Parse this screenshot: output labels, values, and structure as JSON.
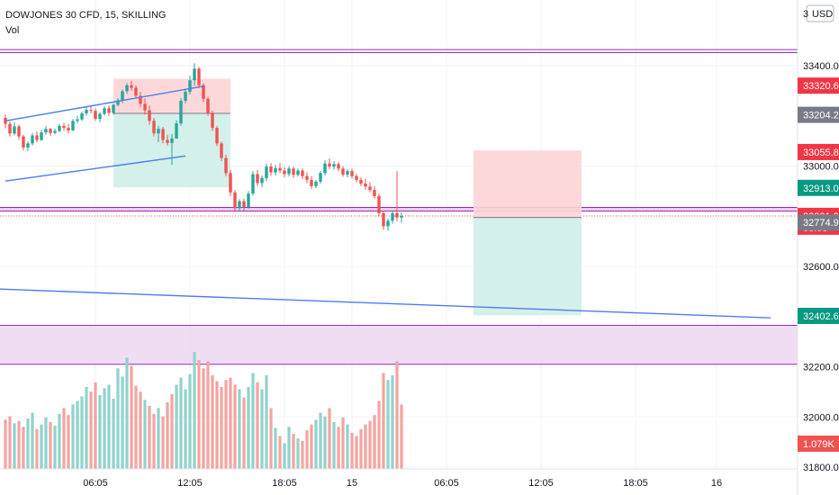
{
  "header": {
    "title": "DOWJONES 30 CFD, 15, SKILLING",
    "volume_label": "Vol"
  },
  "currency_button": "USD",
  "chart_data": {
    "type": "candlestick",
    "symbol": "DOWJONES 30 CFD",
    "interval": "15",
    "broker": "SKILLING",
    "y_unit": "price",
    "ylim": [
      31795,
      33535
    ],
    "price_ticks": [
      "33400.0",
      "33000.0",
      "32600.0",
      "32200.0",
      "32000.0",
      "31800.0"
    ],
    "partial_top_tick": "3",
    "time_ticks": [
      "06:05",
      "12:05",
      "18:05",
      "15",
      "06:05",
      "12:05",
      "18:05",
      "16"
    ],
    "grid": true,
    "ohlc": [
      [
        33192,
        33205,
        33150,
        33168
      ],
      [
        33168,
        33178,
        33118,
        33130
      ],
      [
        33130,
        33176,
        33122,
        33158
      ],
      [
        33158,
        33165,
        33105,
        33118
      ],
      [
        33118,
        33124,
        33062,
        33074
      ],
      [
        33074,
        33098,
        33060,
        33090
      ],
      [
        33090,
        33132,
        33082,
        33122
      ],
      [
        33122,
        33138,
        33095,
        33104
      ],
      [
        33104,
        33145,
        33100,
        33134
      ],
      [
        33134,
        33160,
        33125,
        33148
      ],
      [
        33148,
        33152,
        33120,
        33132
      ],
      [
        33132,
        33150,
        33126,
        33140
      ],
      [
        33140,
        33168,
        33135,
        33160
      ],
      [
        33160,
        33172,
        33140,
        33152
      ],
      [
        33152,
        33168,
        33130,
        33142
      ],
      [
        33142,
        33188,
        33140,
        33180
      ],
      [
        33180,
        33200,
        33170,
        33186
      ],
      [
        33186,
        33218,
        33180,
        33210
      ],
      [
        33210,
        33235,
        33200,
        33224
      ],
      [
        33224,
        33240,
        33210,
        33220
      ],
      [
        33220,
        33230,
        33180,
        33188
      ],
      [
        33188,
        33215,
        33175,
        33208
      ],
      [
        33208,
        33238,
        33200,
        33230
      ],
      [
        33230,
        33242,
        33200,
        33212
      ],
      [
        33212,
        33250,
        33205,
        33244
      ],
      [
        33244,
        33270,
        33238,
        33262
      ],
      [
        33262,
        33305,
        33250,
        33298
      ],
      [
        33298,
        33330,
        33288,
        33322
      ],
      [
        33322,
        33340,
        33300,
        33312
      ],
      [
        33312,
        33322,
        33268,
        33280
      ],
      [
        33280,
        33296,
        33236,
        33248
      ],
      [
        33248,
        33270,
        33205,
        33222
      ],
      [
        33222,
        33240,
        33165,
        33180
      ],
      [
        33180,
        33192,
        33118,
        33130
      ],
      [
        33130,
        33160,
        33096,
        33148
      ],
      [
        33148,
        33156,
        33090,
        33104
      ],
      [
        33104,
        33125,
        33082,
        33092
      ],
      [
        33092,
        33128,
        33005,
        33110
      ],
      [
        33110,
        33182,
        33108,
        33170
      ],
      [
        33170,
        33270,
        33160,
        33260
      ],
      [
        33260,
        33308,
        33250,
        33296
      ],
      [
        33296,
        33360,
        33285,
        33342
      ],
      [
        33342,
        33410,
        33320,
        33388
      ],
      [
        33388,
        33395,
        33310,
        33322
      ],
      [
        33322,
        33330,
        33256,
        33268
      ],
      [
        33268,
        33276,
        33200,
        33212
      ],
      [
        33212,
        33220,
        33140,
        33152
      ],
      [
        33152,
        33160,
        33080,
        33090
      ],
      [
        33090,
        33098,
        33020,
        33032
      ],
      [
        33032,
        33045,
        32960,
        32972
      ],
      [
        32972,
        32985,
        32880,
        32895
      ],
      [
        32895,
        32905,
        32820,
        32832
      ],
      [
        32832,
        32868,
        32820,
        32860
      ],
      [
        32860,
        32870,
        32822,
        32836
      ],
      [
        32836,
        32900,
        32830,
        32890
      ],
      [
        32890,
        32980,
        32882,
        32968
      ],
      [
        32968,
        32985,
        32920,
        32932
      ],
      [
        32932,
        32962,
        32915,
        32952
      ],
      [
        32952,
        33010,
        32940,
        32998
      ],
      [
        32998,
        33012,
        32962,
        32975
      ],
      [
        32975,
        33005,
        32962,
        32992
      ],
      [
        32992,
        33012,
        32972,
        32982
      ],
      [
        32982,
        32996,
        32955,
        32968
      ],
      [
        32968,
        33000,
        32958,
        32990
      ],
      [
        32990,
        32998,
        32952,
        32965
      ],
      [
        32965,
        32990,
        32958,
        32982
      ],
      [
        32982,
        32990,
        32948,
        32960
      ],
      [
        32960,
        32975,
        32932,
        32945
      ],
      [
        32945,
        32960,
        32908,
        32920
      ],
      [
        32920,
        32945,
        32912,
        32938
      ],
      [
        32938,
        32980,
        32930,
        32972
      ],
      [
        32972,
        33022,
        32962,
        33010
      ],
      [
        33010,
        33030,
        32988,
        32998
      ],
      [
        32998,
        33020,
        32985,
        33008
      ],
      [
        33008,
        33016,
        32980,
        32990
      ],
      [
        32990,
        33000,
        32958,
        32966
      ],
      [
        32966,
        32988,
        32955,
        32980
      ],
      [
        32980,
        32990,
        32950,
        32960
      ],
      [
        32960,
        32968,
        32935,
        32945
      ],
      [
        32945,
        32955,
        32920,
        32930
      ],
      [
        32930,
        32950,
        32905,
        32918
      ],
      [
        32918,
        32935,
        32895,
        32905
      ],
      [
        32905,
        32920,
        32870,
        32880
      ],
      [
        32880,
        32890,
        32800,
        32812
      ],
      [
        32812,
        32822,
        32745,
        32760
      ],
      [
        32760,
        32790,
        32742,
        32782
      ],
      [
        32782,
        32820,
        32770,
        32812
      ],
      [
        32812,
        32980,
        32780,
        32795
      ],
      [
        32795,
        32815,
        32775,
        32801
      ]
    ],
    "volume_axis_label": "1.079K",
    "volume": [
      [
        0.42,
        0
      ],
      [
        0.45,
        0
      ],
      [
        0.39,
        1
      ],
      [
        0.41,
        0
      ],
      [
        0.36,
        0
      ],
      [
        0.43,
        1
      ],
      [
        0.48,
        1
      ],
      [
        0.34,
        0
      ],
      [
        0.38,
        1
      ],
      [
        0.44,
        1
      ],
      [
        0.4,
        0
      ],
      [
        0.37,
        1
      ],
      [
        0.47,
        1
      ],
      [
        0.52,
        0
      ],
      [
        0.46,
        0
      ],
      [
        0.55,
        1
      ],
      [
        0.58,
        1
      ],
      [
        0.62,
        1
      ],
      [
        0.7,
        1
      ],
      [
        0.66,
        0
      ],
      [
        0.74,
        0
      ],
      [
        0.63,
        1
      ],
      [
        0.69,
        1
      ],
      [
        0.72,
        1
      ],
      [
        0.6,
        1
      ],
      [
        0.86,
        1
      ],
      [
        0.79,
        1
      ],
      [
        0.95,
        1
      ],
      [
        0.88,
        0
      ],
      [
        0.71,
        0
      ],
      [
        0.66,
        0
      ],
      [
        0.59,
        1
      ],
      [
        0.54,
        0
      ],
      [
        0.47,
        0
      ],
      [
        0.52,
        1
      ],
      [
        0.45,
        0
      ],
      [
        0.57,
        0
      ],
      [
        0.64,
        0
      ],
      [
        0.72,
        1
      ],
      [
        0.78,
        1
      ],
      [
        0.68,
        1
      ],
      [
        0.81,
        1
      ],
      [
        1.0,
        1
      ],
      [
        0.93,
        0
      ],
      [
        0.86,
        0
      ],
      [
        0.92,
        0
      ],
      [
        0.8,
        0
      ],
      [
        0.75,
        0
      ],
      [
        0.7,
        0
      ],
      [
        0.76,
        0
      ],
      [
        0.78,
        0
      ],
      [
        0.72,
        0
      ],
      [
        0.68,
        1
      ],
      [
        0.61,
        0
      ],
      [
        0.7,
        1
      ],
      [
        0.82,
        1
      ],
      [
        0.74,
        0
      ],
      [
        0.68,
        1
      ],
      [
        0.8,
        1
      ],
      [
        0.52,
        0
      ],
      [
        0.35,
        1
      ],
      [
        0.28,
        0
      ],
      [
        0.22,
        1
      ],
      [
        0.36,
        1
      ],
      [
        0.3,
        0
      ],
      [
        0.26,
        1
      ],
      [
        0.24,
        0
      ],
      [
        0.33,
        0
      ],
      [
        0.38,
        0
      ],
      [
        0.42,
        1
      ],
      [
        0.48,
        1
      ],
      [
        0.45,
        1
      ],
      [
        0.52,
        0
      ],
      [
        0.4,
        1
      ],
      [
        0.36,
        0
      ],
      [
        0.44,
        0
      ],
      [
        0.38,
        1
      ],
      [
        0.31,
        0
      ],
      [
        0.28,
        0
      ],
      [
        0.34,
        0
      ],
      [
        0.38,
        0
      ],
      [
        0.41,
        0
      ],
      [
        0.46,
        0
      ],
      [
        0.58,
        0
      ],
      [
        0.82,
        0
      ],
      [
        0.76,
        1
      ],
      [
        0.8,
        1
      ],
      [
        0.92,
        0
      ],
      [
        0.55,
        0
      ]
    ],
    "trend_lines": [
      {
        "from": [
          0,
          33180
        ],
        "to": [
          44,
          33318
        ]
      },
      {
        "from": [
          0,
          32940
        ],
        "to": [
          40,
          33040
        ]
      },
      {
        "from": [
          -2,
          32510
        ],
        "to": [
          170,
          32395
        ]
      }
    ],
    "horizontal_lines": [
      33464,
      33452,
      32835,
      32820
    ],
    "zones": [
      {
        "from_price": 32835,
        "to_price": 32820,
        "color": "#e1bee7"
      },
      {
        "from_price": 32365,
        "to_price": 32210,
        "color": "#e9d2f0"
      }
    ],
    "position_tools": [
      {
        "from_bar": 24,
        "to_bar": 50,
        "entry": 33210,
        "stop": 33348,
        "target": 32915
      },
      {
        "from_bar": 104,
        "to_bar": 128,
        "entry": 32795,
        "stop": 33062,
        "target": 32405
      }
    ],
    "price_labels": [
      {
        "text": "33320.6",
        "value": 33320.6,
        "color": "#f23645"
      },
      {
        "text": "33204.2",
        "value": 33204.2,
        "color": "#787b86"
      },
      {
        "text": "33055.8",
        "value": 33055.8,
        "color": "#f23645"
      },
      {
        "text": "32913.0",
        "value": 32913.0,
        "color": "#089981"
      },
      {
        "text": "32801.3",
        "value": 32801.3,
        "color": "#f23645",
        "sub": "08:05"
      },
      {
        "text": "32774.9",
        "value": 32774.9,
        "color": "#787b86"
      },
      {
        "text": "32402.6",
        "value": 32402.6,
        "color": "#089981"
      }
    ],
    "colors": {
      "up": "#26a69a",
      "down": "#ef5350",
      "vol_up": "#8fd3cc",
      "vol_down": "#f5a3a1",
      "trend": "#4a7df0",
      "level": "#9c27b0",
      "profit_zone": "#cfeee9",
      "loss_zone": "#fcd4d6"
    }
  }
}
